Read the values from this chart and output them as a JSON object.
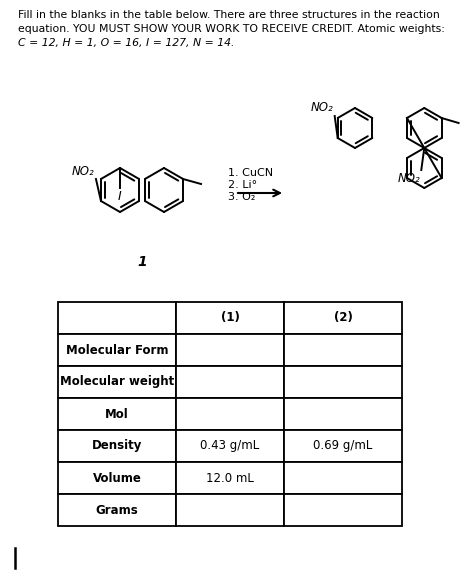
{
  "title_line1": "Fill in the blanks in the table below. There are three structures in the reaction",
  "title_line2": "equation. YOU MUST SHOW YOUR WORK TO RECEIVE CREDIT. Atomic weights:",
  "title_line3": "C = 12, H = 1, O = 16, I = 127, N = 14.",
  "reaction_steps": [
    "1. CuCN",
    "2. Li°",
    "3. O₂"
  ],
  "table_headers": [
    "",
    "(1)",
    "(2)"
  ],
  "table_rows": [
    [
      "Molecular Form",
      "",
      ""
    ],
    [
      "Molecular weight",
      "",
      ""
    ],
    [
      "Mol",
      "",
      ""
    ],
    [
      "Density",
      "0.43 g/mL",
      "0.69 g/mL"
    ],
    [
      "Volume",
      "12.0 mL",
      ""
    ],
    [
      "Grams",
      "",
      ""
    ]
  ],
  "bg_color": "#ffffff",
  "text_color": "#000000"
}
